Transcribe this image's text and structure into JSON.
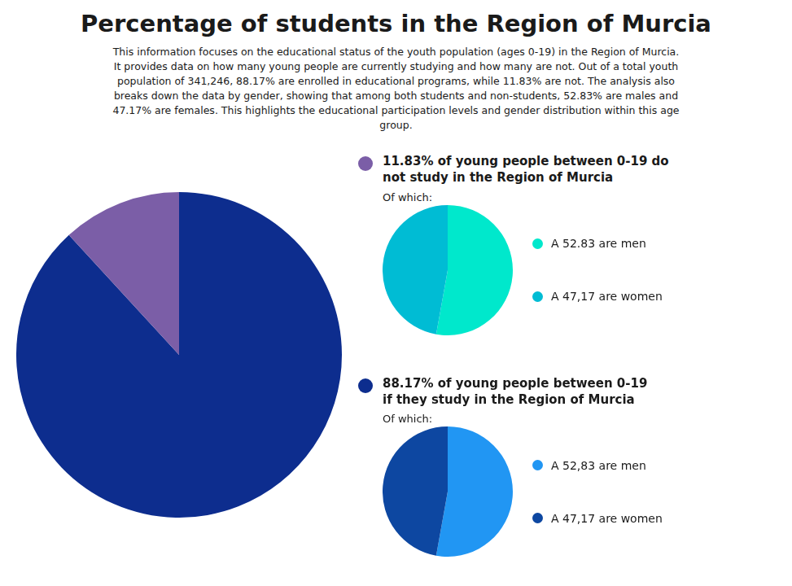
{
  "chart_data": [
    {
      "type": "pie",
      "title": "Percentage of students in the Region of Murcia",
      "subtitle": "This information focuses on the educational status of the youth population (ages 0-19) in the Region of Murcia.\nIt provides data on how many young people are currently studying and how many are not. Out of a total youth\npopulation of 341,246, 88.17% are enrolled in educational programs, while 11.83% are not. The analysis also\nbreaks down the data by gender, showing that among both students and non-students, 52.83% are males and\n47.17% are females. This highlights the educational participation levels and gender distribution within this age\ngroup.",
      "categories": [
        "88.17% of young people between 0-19\nif they study in the Region of Murcia",
        "11.83% of young people between 0-19 do\nnot study in the Region of Murcia"
      ],
      "values": [
        88.17,
        11.83
      ],
      "colors": [
        "#0d2d8e",
        "#7b5ea7"
      ]
    },
    {
      "type": "pie",
      "title": "Of which:",
      "categories": [
        "A 52.83 are men",
        "A 47,17 are women"
      ],
      "values": [
        52.83,
        47.17
      ],
      "colors": [
        "#00e8cc",
        "#00bcd4"
      ]
    },
    {
      "type": "pie",
      "title": "Of which:",
      "categories": [
        "A 52,83 are men",
        "A 47,17 are women"
      ],
      "values": [
        52.83,
        47.17
      ],
      "colors": [
        "#2196f3",
        "#0d47a1"
      ]
    }
  ]
}
